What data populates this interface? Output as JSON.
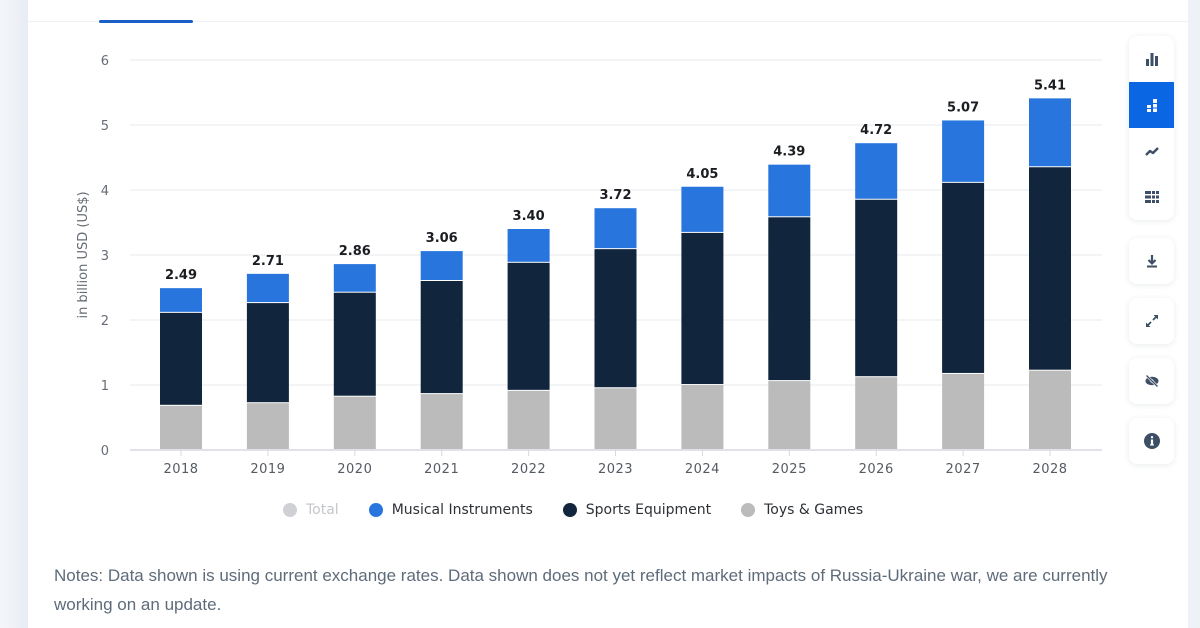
{
  "chart_data": {
    "type": "bar",
    "stacked": true,
    "title": "",
    "xlabel": "",
    "ylabel": "in billion USD (US$)",
    "ylim": [
      0,
      6
    ],
    "yticks": [
      0,
      1,
      2,
      3,
      4,
      5,
      6
    ],
    "grid": true,
    "legend_position": "bottom",
    "categories": [
      "2018",
      "2019",
      "2020",
      "2021",
      "2022",
      "2023",
      "2024",
      "2025",
      "2026",
      "2027",
      "2028"
    ],
    "series": [
      {
        "name": "Toys & Games",
        "color": "#bbbbbb",
        "values": [
          0.68,
          0.72,
          0.82,
          0.86,
          0.91,
          0.95,
          1.0,
          1.06,
          1.12,
          1.17,
          1.22
        ]
      },
      {
        "name": "Sports Equipment",
        "color": "#11263c",
        "values": [
          1.43,
          1.54,
          1.6,
          1.74,
          1.97,
          2.14,
          2.34,
          2.52,
          2.73,
          2.94,
          3.13
        ]
      },
      {
        "name": "Musical Instruments",
        "color": "#2876dd",
        "values": [
          0.38,
          0.45,
          0.44,
          0.46,
          0.52,
          0.63,
          0.71,
          0.81,
          0.87,
          0.96,
          1.06
        ]
      }
    ],
    "totals": [
      2.49,
      2.71,
      2.86,
      3.06,
      3.4,
      3.72,
      4.05,
      4.39,
      4.72,
      5.07,
      5.41
    ],
    "total_labels": [
      "2.49",
      "2.71",
      "2.86",
      "3.06",
      "3.40",
      "3.72",
      "4.05",
      "4.39",
      "4.72",
      "5.07",
      "5.41"
    ]
  },
  "legend": [
    {
      "label": "Total",
      "color": "#cfd1d4",
      "enabled": false
    },
    {
      "label": "Musical Instruments",
      "color": "#2876dd",
      "enabled": true
    },
    {
      "label": "Sports Equipment",
      "color": "#11263c",
      "enabled": true
    },
    {
      "label": "Toys & Games",
      "color": "#bbbbbb",
      "enabled": true
    }
  ],
  "notes": "Notes: Data shown is using current exchange rates. Data shown does not yet reflect market impacts of Russia-Ukraine war, we are currently working on an update.",
  "toolbar": {
    "chart_types": [
      {
        "icon": "bar-chart-icon",
        "active": false
      },
      {
        "icon": "stacked-bar-chart-icon",
        "active": true
      },
      {
        "icon": "line-chart-icon",
        "active": false
      },
      {
        "icon": "table-icon",
        "active": false
      }
    ],
    "actions": [
      {
        "icon": "download-icon"
      },
      {
        "icon": "fullscreen-icon"
      },
      {
        "icon": "hide-icon"
      },
      {
        "icon": "info-icon"
      }
    ],
    "accent_color": "#0b66e4",
    "icon_color": "#3d4f66"
  }
}
